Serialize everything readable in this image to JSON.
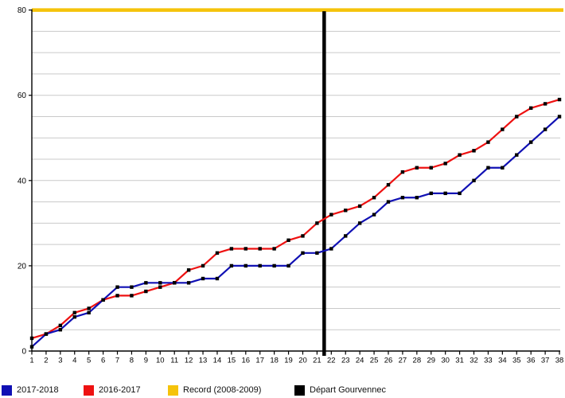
{
  "chart_data": {
    "type": "line",
    "title": "",
    "xlabel": "",
    "ylabel": "",
    "x": [
      1,
      2,
      3,
      4,
      5,
      6,
      7,
      8,
      9,
      10,
      11,
      12,
      13,
      14,
      15,
      16,
      17,
      18,
      19,
      20,
      21,
      22,
      23,
      24,
      25,
      26,
      27,
      28,
      29,
      30,
      31,
      32,
      33,
      34,
      35,
      36,
      37,
      38
    ],
    "series": [
      {
        "name": "2017-2018",
        "color": "#1010b4",
        "values": [
          1,
          4,
          5,
          8,
          9,
          12,
          15,
          15,
          16,
          16,
          16,
          16,
          17,
          17,
          20,
          20,
          20,
          20,
          20,
          23,
          23,
          24,
          27,
          30,
          32,
          35,
          36,
          36,
          37,
          37,
          37,
          40,
          43,
          43,
          46,
          49,
          52,
          55
        ]
      },
      {
        "name": "2016-2017",
        "color": "#ee1111",
        "values": [
          3,
          4,
          6,
          9,
          10,
          12,
          13,
          13,
          14,
          15,
          16,
          19,
          20,
          23,
          24,
          24,
          24,
          24,
          26,
          27,
          30,
          32,
          33,
          34,
          36,
          39,
          42,
          43,
          43,
          44,
          46,
          47,
          49,
          52,
          55,
          57,
          58,
          59
        ]
      }
    ],
    "reference_lines": [
      {
        "name": "Record (2008-2009)",
        "orientation": "horizontal",
        "value": 80,
        "color": "#f5c30a"
      },
      {
        "name": "Départ Gourvennec",
        "orientation": "vertical",
        "value": 21.5,
        "color": "#000000"
      }
    ],
    "ylim": [
      0,
      80
    ],
    "xlim": [
      1,
      38
    ],
    "y_ticks": [
      0,
      20,
      40,
      60,
      80
    ],
    "x_ticks": [
      1,
      2,
      3,
      4,
      5,
      6,
      7,
      8,
      9,
      10,
      11,
      12,
      13,
      14,
      15,
      16,
      17,
      18,
      19,
      20,
      21,
      22,
      23,
      24,
      25,
      26,
      27,
      28,
      29,
      30,
      31,
      32,
      33,
      34,
      35,
      36,
      37,
      38
    ],
    "grid_step": 5,
    "grid_on": true,
    "grid_color": "#c9c9c9",
    "marker": "square",
    "marker_color": "#000000",
    "legend_position": "bottom"
  },
  "legend": {
    "items": [
      {
        "label": "2017-2018",
        "color": "#1010b4"
      },
      {
        "label": "2016-2017",
        "color": "#ee1111"
      },
      {
        "label": "Record (2008-2009)",
        "color": "#f5c30a"
      },
      {
        "label": "Départ Gourvennec",
        "color": "#000000"
      }
    ]
  }
}
